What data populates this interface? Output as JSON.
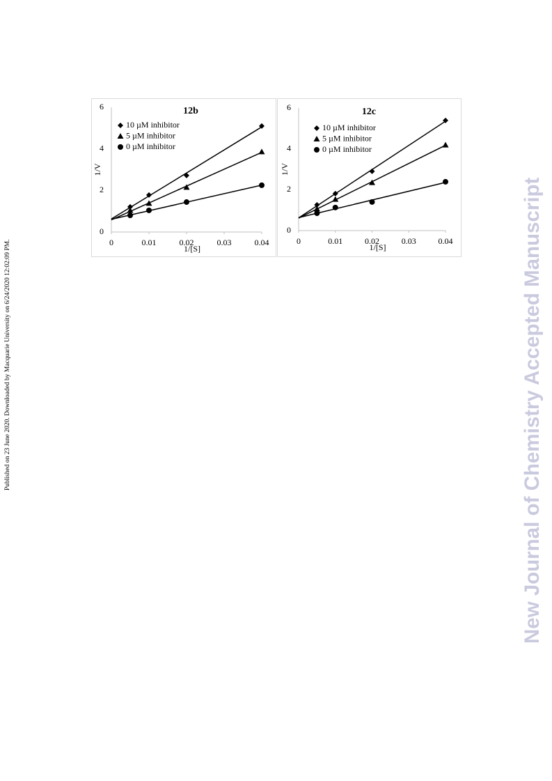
{
  "sidebar": "Published on 23 June 2020. Downloaded by Macquarie University on 6/24/2020 12:02:09 PM.",
  "watermark": "New Journal of Chemistry Accepted Manuscript",
  "chart_data": [
    {
      "type": "scatter",
      "title": "12b",
      "x_label": "1/[S]",
      "y_label": "1/V",
      "x": [
        0.005,
        0.01,
        0.02,
        0.04
      ],
      "series": [
        {
          "name": "10 µM inhibitor",
          "color": "#000000",
          "marker": "diamond",
          "values": [
            1.21,
            1.78,
            2.72,
            5.1
          ]
        },
        {
          "name": "5 µM inhibitor",
          "color": "#000000",
          "marker": "triangle",
          "values": [
            1.04,
            1.38,
            2.15,
            3.86
          ]
        },
        {
          "name": "0 µM inhibitor",
          "color": "#000000",
          "marker": "circle",
          "values": [
            0.8,
            1.04,
            1.44,
            2.25
          ]
        }
      ],
      "xlim": [
        0,
        0.04
      ],
      "xticks": [
        0,
        0.01,
        0.02,
        0.03,
        0.04
      ],
      "ylim": [
        0,
        6
      ],
      "yticks": [
        0,
        2,
        4,
        6
      ],
      "trendline": true,
      "grid": false,
      "legend": "top-left"
    },
    {
      "type": "scatter",
      "title": "12c",
      "x_label": "1/[S]",
      "y_label": "1/V",
      "x": [
        0.005,
        0.01,
        0.02,
        0.04
      ],
      "series": [
        {
          "name": "10 µM inhibitor",
          "color": "#000000",
          "marker": "diamond",
          "values": [
            1.26,
            1.81,
            2.9,
            5.39
          ]
        },
        {
          "name": "5 µM inhibitor",
          "color": "#000000",
          "marker": "triangle",
          "values": [
            1.06,
            1.53,
            2.35,
            4.19
          ]
        },
        {
          "name": "0 µM inhibitor",
          "color": "#000000",
          "marker": "circle",
          "values": [
            0.85,
            1.13,
            1.4,
            2.39
          ]
        }
      ],
      "xlim": [
        0,
        0.04
      ],
      "xticks": [
        0,
        0.01,
        0.02,
        0.03,
        0.04
      ],
      "ylim": [
        0,
        6
      ],
      "yticks": [
        0,
        2,
        4,
        6
      ],
      "trendline": true,
      "grid": false,
      "legend": "top-left"
    }
  ]
}
